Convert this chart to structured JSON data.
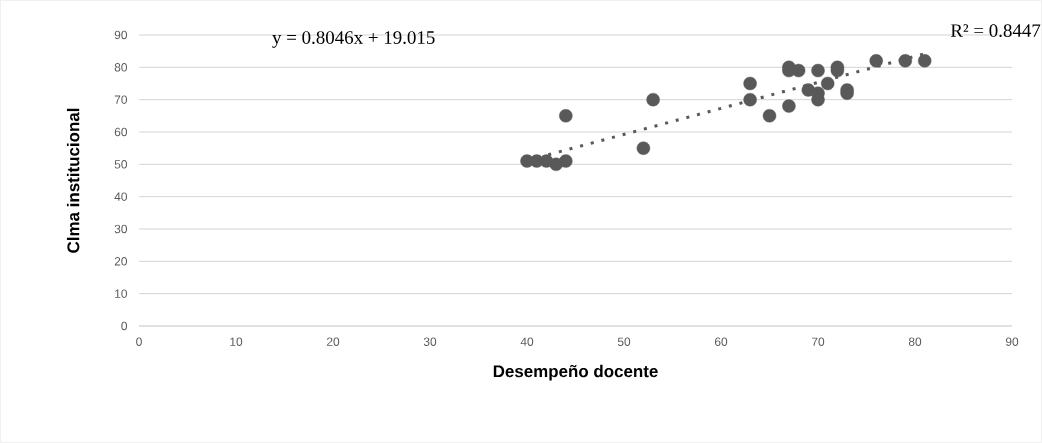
{
  "chart_data": {
    "type": "scatter",
    "xlabel": "Desempeño docente",
    "ylabel": "Clma institucional",
    "annotations": [
      "y = 0.8046x + 19.015",
      "R² = 0.8447"
    ],
    "xlim": [
      0,
      90
    ],
    "ylim": [
      0,
      90
    ],
    "xticks": [
      0,
      10,
      20,
      30,
      40,
      50,
      60,
      70,
      80,
      90
    ],
    "yticks": [
      0,
      10,
      20,
      30,
      40,
      50,
      60,
      70,
      80,
      90
    ],
    "grid": "y",
    "series": [
      {
        "color": "#595959",
        "marker": "circle",
        "x": [
          40,
          41,
          42,
          43,
          44,
          44,
          52,
          53,
          63,
          63,
          65,
          67,
          67,
          67,
          68,
          69,
          70,
          70,
          70,
          71,
          72,
          72,
          73,
          73,
          76,
          79,
          81
        ],
        "values": [
          51,
          51,
          51,
          50,
          51,
          65,
          55,
          70,
          75,
          70,
          65,
          68,
          80,
          79,
          79,
          73,
          79,
          72,
          70,
          75,
          80,
          79,
          73,
          72,
          82,
          82,
          82
        ]
      },
      {
        "type": "line",
        "color": "#595959",
        "line_style": "dotted",
        "marker": "none",
        "x": [
          40,
          81
        ],
        "values": [
          51.2,
          84.2
        ]
      }
    ]
  }
}
